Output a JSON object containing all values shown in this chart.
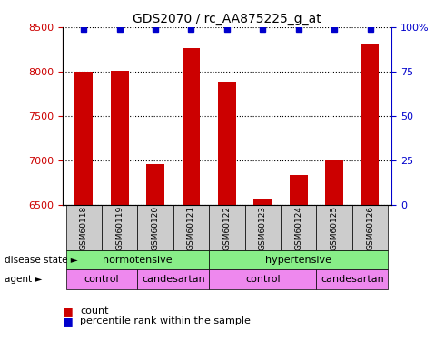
{
  "title": "GDS2070 / rc_AA875225_g_at",
  "samples": [
    "GSM60118",
    "GSM60119",
    "GSM60120",
    "GSM60121",
    "GSM60122",
    "GSM60123",
    "GSM60124",
    "GSM60125",
    "GSM60126"
  ],
  "counts": [
    8000,
    8010,
    6960,
    8270,
    7890,
    6560,
    6840,
    7010,
    8310
  ],
  "percentiles": [
    99,
    99,
    99,
    99,
    99,
    99,
    99,
    99,
    99
  ],
  "ylim": [
    6500,
    8500
  ],
  "yticks": [
    6500,
    7000,
    7500,
    8000,
    8500
  ],
  "right_yticks": [
    0,
    25,
    50,
    75,
    100
  ],
  "right_ylim": [
    0,
    100
  ],
  "bar_color": "#CC0000",
  "dot_color": "#0000CC",
  "background_color": "#ffffff",
  "grid_color": "#000000",
  "disease_state_color": "#88EE88",
  "agent_color": "#EE88EE",
  "sample_box_color": "#CCCCCC",
  "label_row1": "disease state",
  "label_row2": "agent",
  "legend_count_label": "count",
  "legend_pct_label": "percentile rank within the sample",
  "tick_color_left": "#CC0000",
  "tick_color_right": "#0000CC",
  "ds_spans": [
    [
      0,
      3,
      "normotensive"
    ],
    [
      4,
      8,
      "hypertensive"
    ]
  ],
  "ag_spans": [
    [
      0,
      1,
      "control"
    ],
    [
      2,
      3,
      "candesartan"
    ],
    [
      4,
      6,
      "control"
    ],
    [
      7,
      8,
      "candesartan"
    ]
  ]
}
